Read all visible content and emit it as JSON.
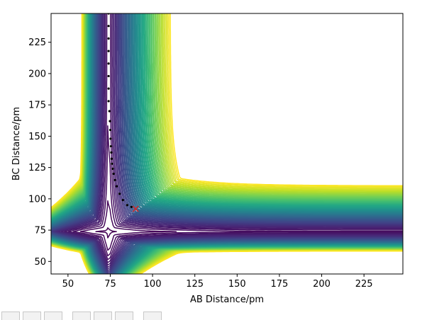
{
  "chart_data": {
    "type": "contour",
    "title": "",
    "xlabel": "AB Distance/pm",
    "ylabel": "BC Distance/pm",
    "xlim": [
      40,
      248
    ],
    "ylim": [
      40,
      248
    ],
    "xticks": [
      50,
      75,
      100,
      125,
      150,
      175,
      200,
      225
    ],
    "yticks": [
      50,
      75,
      100,
      125,
      150,
      175,
      200,
      225
    ],
    "colormap": "viridis",
    "trajectory": {
      "color": "#000000",
      "points": [
        [
          74,
          248
        ],
        [
          74,
          238
        ],
        [
          74,
          228
        ],
        [
          74,
          218
        ],
        [
          74,
          208
        ],
        [
          74,
          198
        ],
        [
          74,
          188
        ],
        [
          74,
          178
        ],
        [
          74.5,
          170
        ],
        [
          74.8,
          162
        ],
        [
          75,
          155
        ],
        [
          75.2,
          148
        ],
        [
          75.4,
          142
        ],
        [
          75.6,
          137
        ],
        [
          75.8,
          132
        ],
        [
          76,
          128
        ],
        [
          76.5,
          124
        ],
        [
          77,
          120
        ],
        [
          77.8,
          115
        ],
        [
          78.8,
          110
        ],
        [
          80.5,
          104
        ],
        [
          82.5,
          99
        ],
        [
          85,
          95
        ],
        [
          87.5,
          93.5
        ]
      ]
    },
    "marker": {
      "label": "x",
      "color": "#d62728",
      "x": 90,
      "y": 92
    }
  },
  "toolbar": {
    "buttons": [
      "home",
      "back",
      "forward",
      "pan",
      "zoom",
      "configure",
      "save"
    ]
  }
}
